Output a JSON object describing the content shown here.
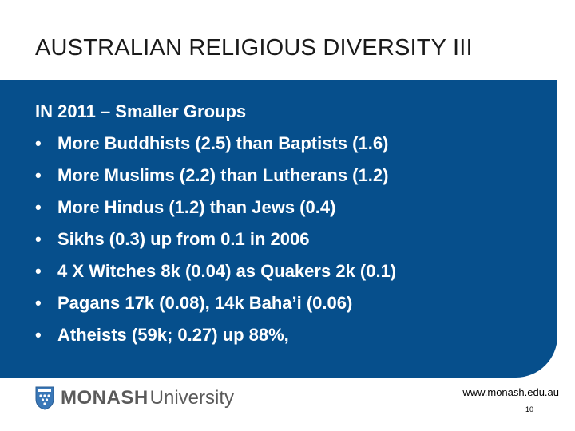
{
  "slide": {
    "title": "AUSTRALIAN RELIGIOUS DIVERSITY III",
    "heading": "IN 2011 – Smaller Groups",
    "bullet_char": "•",
    "bullets": [
      "More Buddhists (2.5) than Baptists (1.6)",
      "More Muslims (2.2) than Lutherans (1.2)",
      "More Hindus (1.2) than Jews (0.4)",
      "Sikhs (0.3) up from 0.1 in 2006",
      "4 X Witches 8k (0.04) as Quakers 2k (0.1)",
      "Pagans 17k (0.08), 14k Baha’i (0.06)",
      "Atheists (59k; 0.27) up 88%,"
    ]
  },
  "footer": {
    "logo_primary": "MONASH",
    "logo_secondary": "University",
    "url": "www.monash.edu.au",
    "page_number": "10"
  },
  "colors": {
    "panel": "#064f8c",
    "crest_blue": "#3a78b8",
    "logo_text": "#5a5a5a"
  }
}
